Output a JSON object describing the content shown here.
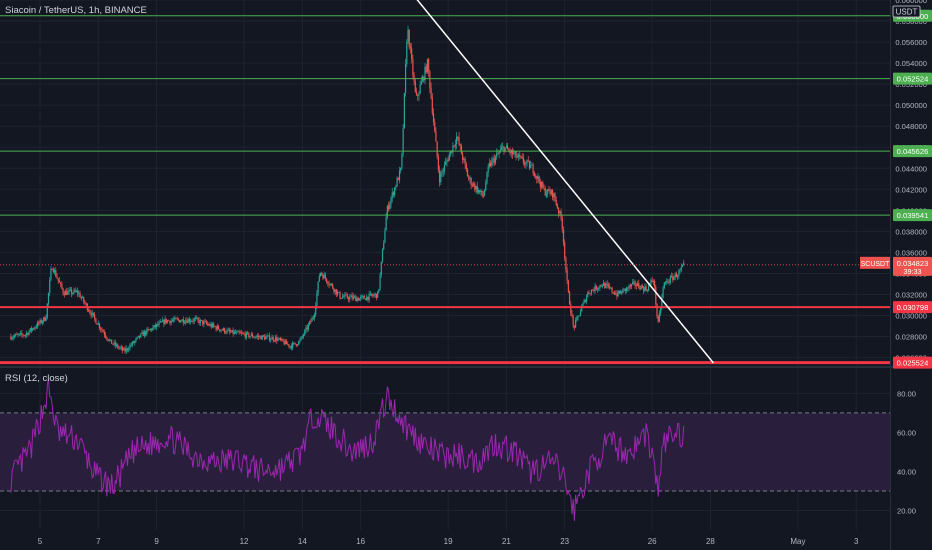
{
  "header": {
    "symbol_title": "Siacoin / TetherUS, 1h, BINANCE",
    "currency": "USDT"
  },
  "colors": {
    "background": "#131722",
    "grid": "#1f2330",
    "up": "#26a69a",
    "down": "#ef5350",
    "support_green": "#4caf50",
    "support_red": "#f23645",
    "trendline": "#ffffff",
    "rsi_line": "#9c27b0",
    "rsi_band": "#2a1e3d",
    "axis_text": "#b2b5be"
  },
  "chart_data": [
    {
      "type": "candlestick",
      "title": "Siacoin / TetherUS, 1h, BINANCE",
      "ylim": [
        0.0252,
        0.06
      ],
      "y_ticks": [
        "0.060000",
        "0.058000",
        "0.056000",
        "0.054000",
        "0.052000",
        "0.050000",
        "0.048000",
        "0.046000",
        "0.044000",
        "0.042000",
        "0.040000",
        "0.038000",
        "0.036000",
        "0.034000",
        "0.032000",
        "0.030000",
        "0.028000",
        "0.026000"
      ],
      "x_ticks": [
        {
          "label": "5",
          "day": 5
        },
        {
          "label": "7",
          "day": 7
        },
        {
          "label": "9",
          "day": 9
        },
        {
          "label": "12",
          "day": 12
        },
        {
          "label": "14",
          "day": 14
        },
        {
          "label": "16",
          "day": 16
        },
        {
          "label": "19",
          "day": 19
        },
        {
          "label": "21",
          "day": 21
        },
        {
          "label": "23",
          "day": 23
        },
        {
          "label": "26",
          "day": 26
        },
        {
          "label": "28",
          "day": 28
        },
        {
          "label": "May",
          "day": 31
        },
        {
          "label": "3",
          "day": 33
        }
      ],
      "price_path": [
        [
          4.0,
          0.028
        ],
        [
          4.5,
          0.0282
        ],
        [
          5.2,
          0.0298
        ],
        [
          5.4,
          0.0348
        ],
        [
          5.8,
          0.0322
        ],
        [
          6.3,
          0.0322
        ],
        [
          6.8,
          0.03
        ],
        [
          7.4,
          0.0275
        ],
        [
          7.9,
          0.0266
        ],
        [
          8.5,
          0.0282
        ],
        [
          9.3,
          0.0295
        ],
        [
          10.3,
          0.0296
        ],
        [
          10.8,
          0.0291
        ],
        [
          11.5,
          0.0284
        ],
        [
          12.4,
          0.028
        ],
        [
          13.1,
          0.0278
        ],
        [
          13.6,
          0.0271
        ],
        [
          13.9,
          0.0275
        ],
        [
          14.4,
          0.03
        ],
        [
          14.6,
          0.0342
        ],
        [
          15.3,
          0.0318
        ],
        [
          16.0,
          0.0316
        ],
        [
          16.6,
          0.032
        ],
        [
          16.9,
          0.04
        ],
        [
          17.4,
          0.044
        ],
        [
          17.6,
          0.0575
        ],
        [
          17.9,
          0.0505
        ],
        [
          18.3,
          0.054
        ],
        [
          18.7,
          0.043
        ],
        [
          19.0,
          0.045
        ],
        [
          19.3,
          0.047
        ],
        [
          19.7,
          0.043
        ],
        [
          20.2,
          0.0413
        ],
        [
          20.4,
          0.0442
        ],
        [
          20.9,
          0.046
        ],
        [
          21.4,
          0.045
        ],
        [
          21.9,
          0.044
        ],
        [
          22.3,
          0.0418
        ],
        [
          22.6,
          0.0416
        ],
        [
          22.9,
          0.039
        ],
        [
          23.1,
          0.0325
        ],
        [
          23.3,
          0.0288
        ],
        [
          23.8,
          0.0322
        ],
        [
          24.3,
          0.033
        ],
        [
          24.8,
          0.032
        ],
        [
          25.4,
          0.033
        ],
        [
          25.8,
          0.0325
        ],
        [
          26.05,
          0.0335
        ],
        [
          26.2,
          0.029
        ],
        [
          26.4,
          0.033
        ],
        [
          26.9,
          0.034
        ],
        [
          27.1,
          0.0348
        ]
      ],
      "horizontal_levels": [
        {
          "price": 0.0585,
          "label": "0.058500",
          "color": "#4caf50",
          "width": 1
        },
        {
          "price": 0.05252,
          "label": "0.052524",
          "color": "#4caf50",
          "width": 1
        },
        {
          "price": 0.04563,
          "label": "0.045626",
          "color": "#4caf50",
          "width": 1
        },
        {
          "price": 0.03954,
          "label": "0.039541",
          "color": "#4caf50",
          "width": 1
        },
        {
          "price": 0.0308,
          "label": "0.030798",
          "color": "#f23645",
          "width": 2
        },
        {
          "price": 0.02552,
          "label": "0.025524",
          "color": "#f23645",
          "width": 3
        }
      ],
      "trendline": {
        "from": [
          17.8,
          0.0605
        ],
        "to": [
          28.1,
          0.0255
        ],
        "color": "#ffffff"
      },
      "last_price": {
        "symbol": "SCUSDT",
        "value": "0.034823",
        "countdown": "39:33",
        "price": 0.03482
      }
    },
    {
      "type": "line",
      "title": "RSI (12, close)",
      "ylim": [
        10,
        93
      ],
      "y_ticks": [
        "80.00",
        "60.00",
        "40.00",
        "20.00"
      ],
      "bands": [
        30,
        70
      ],
      "rsi_path": [
        [
          4.0,
          36
        ],
        [
          4.3,
          43
        ],
        [
          4.7,
          52
        ],
        [
          5.3,
          82
        ],
        [
          5.6,
          60
        ],
        [
          6.3,
          56
        ],
        [
          6.9,
          38
        ],
        [
          7.5,
          32
        ],
        [
          8.2,
          50
        ],
        [
          8.8,
          54
        ],
        [
          9.4,
          58
        ],
        [
          10.3,
          48
        ],
        [
          11.0,
          45
        ],
        [
          11.8,
          46
        ],
        [
          12.6,
          40
        ],
        [
          13.3,
          42
        ],
        [
          13.9,
          48
        ],
        [
          14.4,
          70
        ],
        [
          15.0,
          62
        ],
        [
          15.7,
          50
        ],
        [
          16.4,
          55
        ],
        [
          16.9,
          78
        ],
        [
          17.6,
          62
        ],
        [
          18.3,
          52
        ],
        [
          18.8,
          48
        ],
        [
          19.4,
          48
        ],
        [
          20.0,
          45
        ],
        [
          20.6,
          55
        ],
        [
          21.3,
          50
        ],
        [
          21.8,
          40
        ],
        [
          22.6,
          45
        ],
        [
          23.0,
          36
        ],
        [
          23.3,
          20
        ],
        [
          23.9,
          42
        ],
        [
          24.5,
          55
        ],
        [
          25.2,
          49
        ],
        [
          25.8,
          60
        ],
        [
          26.05,
          45
        ],
        [
          26.2,
          30
        ],
        [
          26.4,
          55
        ],
        [
          26.8,
          60
        ],
        [
          27.1,
          58
        ]
      ]
    }
  ]
}
